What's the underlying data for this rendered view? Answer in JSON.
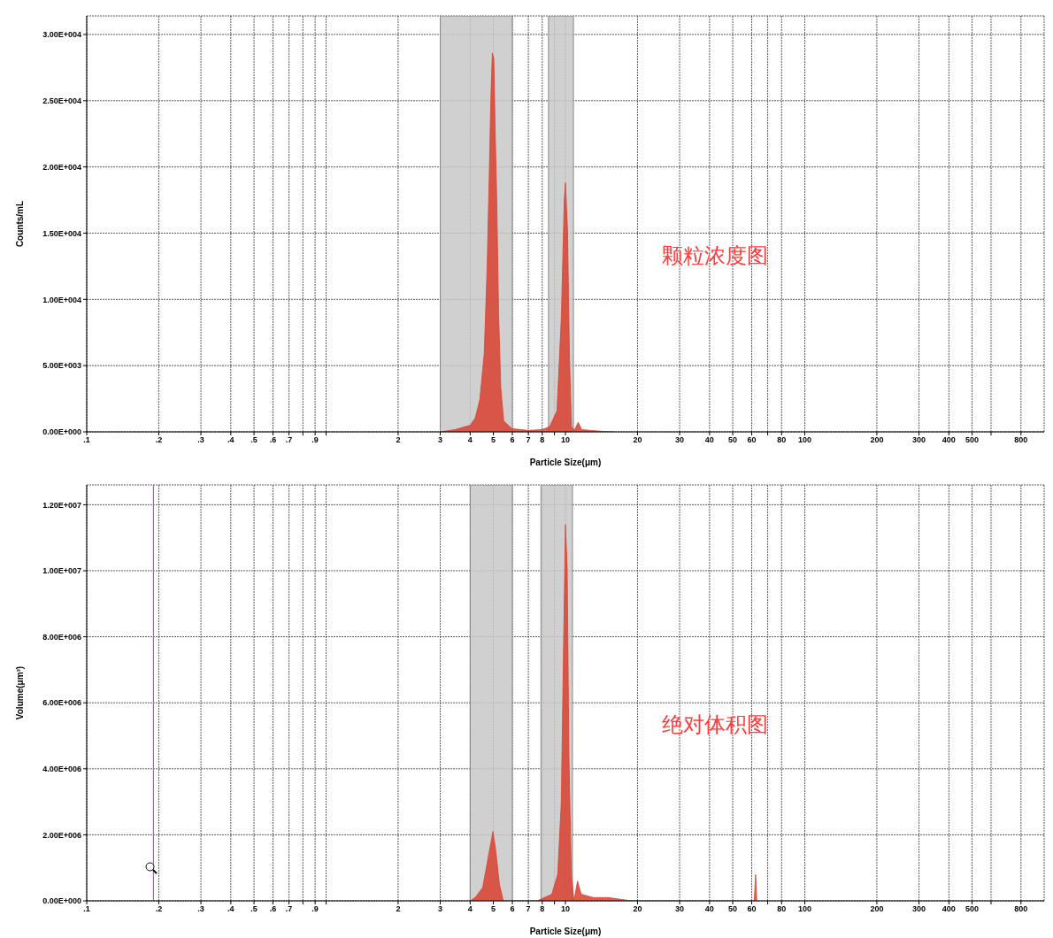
{
  "chart_data": [
    {
      "type": "area",
      "xlabel": "Particle Size(μm)",
      "ylabel": "Counts/mL",
      "log": "x",
      "grid": true,
      "annotations": [
        "颗粒浓度图"
      ],
      "xlim": [
        0.1,
        1000
      ],
      "xticks": [
        {
          "value": 0.1,
          "label": ".1"
        },
        {
          "value": 0.2,
          "label": ".2"
        },
        {
          "value": 0.3,
          "label": ".3"
        },
        {
          "value": 0.4,
          "label": ".4"
        },
        {
          "value": 0.5,
          "label": ".5"
        },
        {
          "value": 0.6,
          "label": ".6"
        },
        {
          "value": 0.7,
          "label": ".7"
        },
        {
          "value": 0.8,
          "label": null
        },
        {
          "value": 0.9,
          "label": ".9"
        },
        {
          "value": 1,
          "label": null
        },
        2,
        3,
        4,
        5,
        6,
        7,
        8,
        {
          "value": 9,
          "label": null
        },
        10,
        20,
        30,
        40,
        50,
        60,
        {
          "value": 70,
          "label": null
        },
        80,
        100,
        200,
        300,
        400,
        500,
        {
          "value": 600,
          "label": null
        },
        800
      ],
      "ylim": [
        0,
        31400
      ],
      "yticks": [
        {
          "value": 0,
          "label": "0.00E+000"
        },
        {
          "value": 5000,
          "label": "5.00E+003"
        },
        {
          "value": 10000,
          "label": "1.00E+004"
        },
        {
          "value": 15000,
          "label": "1.50E+004"
        },
        {
          "value": 20000,
          "label": "2.00E+004"
        },
        {
          "value": 25000,
          "label": "2.50E+004"
        },
        {
          "value": 30000,
          "label": "3.00E+004"
        }
      ],
      "bands": [
        {
          "axis": "x",
          "from": 3,
          "to": 6,
          "color": "#c8c8c8"
        },
        {
          "axis": "x",
          "from": 8.5,
          "to": 10.8,
          "color": "#c8c8c8"
        }
      ],
      "x": [
        3,
        3.46,
        4,
        4.2,
        4.39,
        4.58,
        4.71,
        4.8,
        4.88,
        4.95,
        5.02,
        5.09,
        5.16,
        5.26,
        5.37,
        5.52,
        5.97,
        7,
        8,
        8.59,
        9.22,
        9.62,
        9.89,
        10,
        10.2,
        10.4,
        10.6,
        10.9,
        11.3,
        11.7,
        14.2,
        16
      ],
      "series": [
        {
          "color": "#d9412f",
          "values": [
            0,
            170,
            500,
            1050,
            2460,
            5950,
            12500,
            19000,
            25100,
            28600,
            28200,
            22500,
            17900,
            8800,
            3340,
            830,
            240,
            110,
            170,
            390,
            1590,
            8800,
            17500,
            18800,
            15300,
            5520,
            390,
            110,
            720,
            170,
            40,
            0
          ]
        }
      ]
    },
    {
      "type": "area",
      "xlabel": "Particle Size(μm)",
      "ylabel": "Volume(μm³)",
      "log": "x",
      "grid": true,
      "annotations": [
        "绝对体积图"
      ],
      "xlim": [
        0.1,
        1000
      ],
      "xticks": [
        {
          "value": 0.1,
          "label": ".1"
        },
        {
          "value": 0.2,
          "label": ".2"
        },
        {
          "value": 0.3,
          "label": ".3"
        },
        {
          "value": 0.4,
          "label": ".4"
        },
        {
          "value": 0.5,
          "label": ".5"
        },
        {
          "value": 0.6,
          "label": ".6"
        },
        {
          "value": 0.7,
          "label": ".7"
        },
        {
          "value": 0.8,
          "label": null
        },
        {
          "value": 0.9,
          "label": ".9"
        },
        {
          "value": 1,
          "label": null
        },
        2,
        3,
        4,
        5,
        6,
        7,
        8,
        {
          "value": 9,
          "label": null
        },
        10,
        20,
        30,
        40,
        50,
        60,
        {
          "value": 70,
          "label": null
        },
        80,
        100,
        200,
        300,
        400,
        500,
        {
          "value": 600,
          "label": null
        },
        800
      ],
      "ylim": [
        0,
        12600000
      ],
      "yticks": [
        {
          "value": 0,
          "label": "0.00E+000"
        },
        {
          "value": 2000000,
          "label": "2.00E+006"
        },
        {
          "value": 4000000,
          "label": "4.00E+006"
        },
        {
          "value": 6000000,
          "label": "6.00E+006"
        },
        {
          "value": 8000000,
          "label": "8.00E+006"
        },
        {
          "value": 10000000,
          "label": "1.00E+007"
        },
        {
          "value": 12000000,
          "label": "1.20E+007"
        }
      ],
      "bands": [
        {
          "axis": "x",
          "from": 4,
          "to": 6,
          "color": "#c8c8c8"
        },
        {
          "axis": "x",
          "from": 7.9,
          "to": 10.7,
          "color": "#c8c8c8"
        }
      ],
      "ref_lines": [
        {
          "axis": "x",
          "value": 0.19,
          "color": "#e040e0"
        }
      ],
      "x": [
        4,
        4.2,
        4.51,
        4.78,
        4.98,
        5.12,
        5.3,
        5.5,
        6.43,
        7.62,
        8.77,
        9.28,
        9.61,
        9.83,
        10,
        10.17,
        10.34,
        10.58,
        10.86,
        11.23,
        11.64,
        13.05,
        15.04,
        18.9,
        61.5,
        62.3,
        63
      ],
      "series": [
        {
          "color": "#d9412f",
          "values": [
            0,
            100000,
            400000,
            1400000,
            2100000,
            1500000,
            500000,
            0,
            0,
            0,
            200000,
            800000,
            3000000,
            7900000,
            11400000,
            10100000,
            4400000,
            800000,
            0,
            600000,
            200000,
            100000,
            100000,
            0,
            0,
            800000,
            0
          ]
        }
      ]
    }
  ]
}
